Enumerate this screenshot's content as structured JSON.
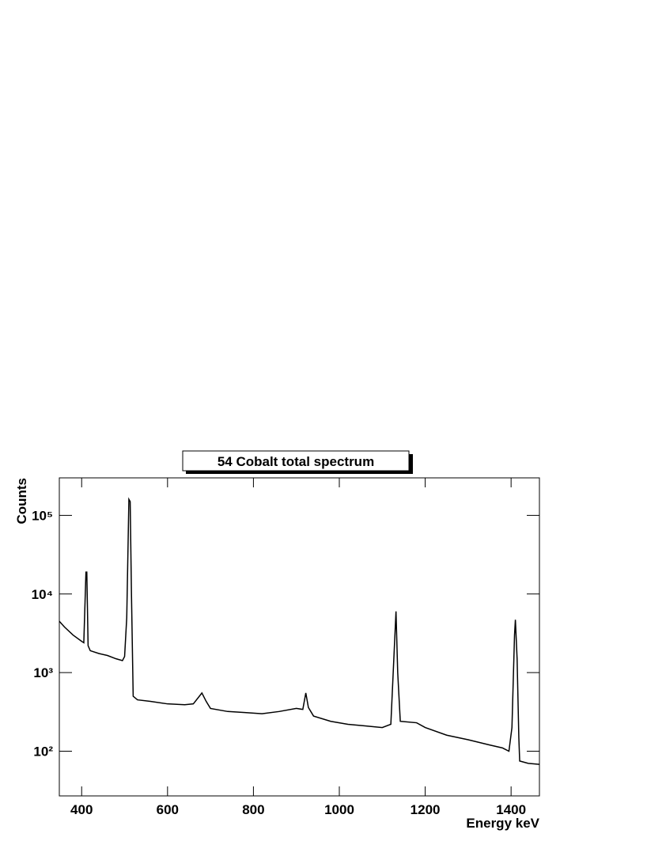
{
  "chart_data": {
    "type": "line",
    "title": "54 Cobalt total spectrum",
    "xlabel": "Energy keV",
    "ylabel": "Counts",
    "log_y": true,
    "color": "#000000",
    "xlim": [
      348,
      1466
    ],
    "xticks": [
      400,
      600,
      800,
      1000,
      1200,
      1400
    ],
    "ylim": [
      27,
      300000
    ],
    "yticks": [
      {
        "value": 100,
        "label": "10²"
      },
      {
        "value": 1000,
        "label": "10³"
      },
      {
        "value": 10000,
        "label": "10⁴"
      },
      {
        "value": 100000,
        "label": "10⁵"
      }
    ],
    "x": [
      348,
      360,
      380,
      400,
      405,
      410,
      412,
      415,
      420,
      440,
      460,
      480,
      495,
      500,
      505,
      510,
      513,
      516,
      520,
      530,
      560,
      600,
      640,
      660,
      680,
      690,
      700,
      740,
      780,
      820,
      860,
      900,
      915,
      922,
      928,
      940,
      980,
      1020,
      1060,
      1100,
      1120,
      1128,
      1132,
      1136,
      1142,
      1180,
      1200,
      1250,
      1300,
      1350,
      1380,
      1395,
      1402,
      1408,
      1410,
      1414,
      1418,
      1420,
      1440,
      1466
    ],
    "values": [
      4500,
      3800,
      3000,
      2500,
      2400,
      19000,
      19000,
      2200,
      1900,
      1750,
      1650,
      1500,
      1420,
      1600,
      5000,
      160000,
      150000,
      10000,
      500,
      450,
      430,
      400,
      390,
      400,
      550,
      430,
      350,
      320,
      310,
      300,
      320,
      350,
      340,
      550,
      360,
      280,
      240,
      220,
      210,
      200,
      220,
      2000,
      6000,
      1000,
      240,
      230,
      200,
      160,
      140,
      120,
      110,
      100,
      200,
      3000,
      4700,
      1500,
      150,
      75,
      70,
      68
    ]
  }
}
